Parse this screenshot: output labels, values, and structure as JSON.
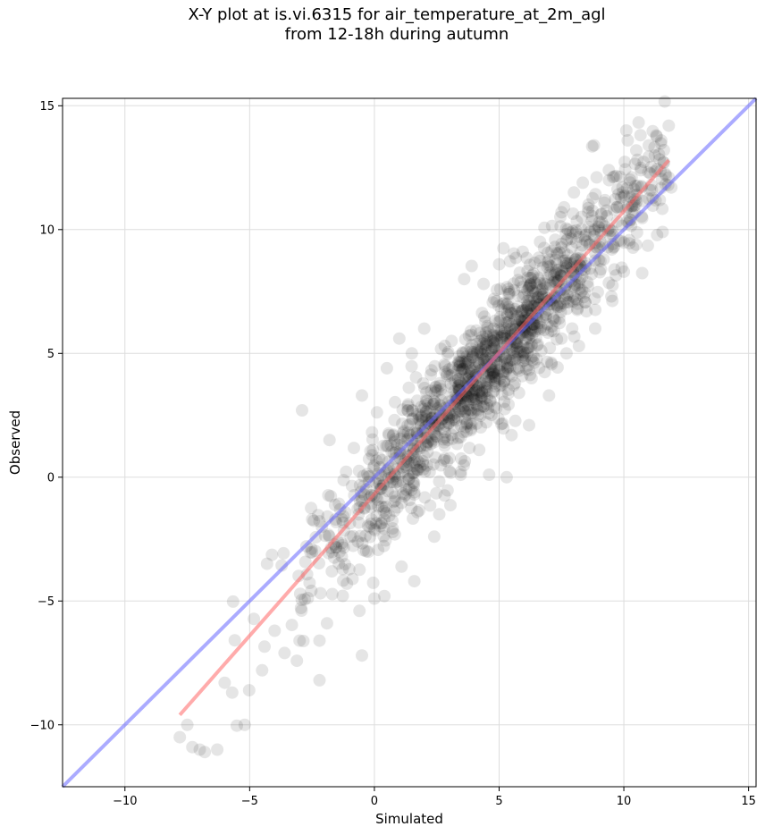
{
  "chart_data": {
    "type": "scatter",
    "title_lines": [
      "X-Y plot at is.vi.6315 for air_temperature_at_2m_agl",
      "from 12-18h during autumn"
    ],
    "xlabel": "Simulated",
    "ylabel": "Observed",
    "xlim": [
      -12.5,
      15.3
    ],
    "ylim": [
      -12.5,
      15.3
    ],
    "xticks": [
      -10,
      -5,
      0,
      5,
      10,
      15
    ],
    "yticks": [
      -10,
      -5,
      0,
      5,
      10,
      15
    ],
    "tick_labels": [
      "−10",
      "−5",
      "0",
      "5",
      "10",
      "15"
    ],
    "grid": true,
    "point_color": "#000000",
    "point_alpha": 0.1,
    "point_count_approx": 1400,
    "series_points_sample": [
      [
        -7.8,
        -10.5
      ],
      [
        -7.3,
        -10.9
      ],
      [
        -7.0,
        -11.0
      ],
      [
        -6.8,
        -11.1
      ],
      [
        -6.3,
        -11.0
      ],
      [
        -7.5,
        -10.0
      ],
      [
        -6.0,
        -8.3
      ],
      [
        -5.7,
        -8.7
      ],
      [
        -5.2,
        -10.0
      ],
      [
        -4.5,
        -7.8
      ],
      [
        -2.2,
        -8.2
      ],
      [
        -0.5,
        -7.2
      ],
      [
        -3.0,
        -6.6
      ],
      [
        -2.2,
        -6.6
      ],
      [
        -0.6,
        -5.4
      ],
      [
        -4.0,
        -6.2
      ],
      [
        -3.6,
        -7.1
      ],
      [
        -1.9,
        -5.9
      ],
      [
        -2.9,
        2.7
      ],
      [
        -1.8,
        1.5
      ],
      [
        -0.5,
        3.3
      ],
      [
        0.5,
        4.4
      ],
      [
        1.0,
        5.6
      ],
      [
        1.5,
        5.0
      ],
      [
        2.0,
        6.0
      ],
      [
        3.6,
        8.0
      ],
      [
        4.8,
        7.2
      ],
      [
        5.0,
        8.6
      ],
      [
        5.3,
        0.0
      ],
      [
        6.2,
        2.1
      ],
      [
        7.0,
        3.3
      ],
      [
        5.5,
        1.7
      ],
      [
        4.6,
        0.1
      ],
      [
        4.2,
        1.1
      ],
      [
        2.6,
        -1.5
      ],
      [
        2.4,
        -2.4
      ],
      [
        1.6,
        -4.2
      ],
      [
        0.0,
        -4.9
      ],
      [
        0.4,
        -4.8
      ],
      [
        -1.1,
        -4.3
      ],
      [
        7.5,
        10.7
      ],
      [
        8.0,
        11.5
      ],
      [
        8.8,
        13.4
      ],
      [
        9.4,
        12.4
      ],
      [
        10.1,
        14.0
      ],
      [
        10.5,
        13.2
      ],
      [
        11.0,
        13.4
      ],
      [
        11.3,
        13.8
      ],
      [
        11.5,
        13.6
      ],
      [
        11.8,
        12.1
      ],
      [
        11.1,
        11.8
      ],
      [
        11.9,
        11.7
      ],
      [
        10.0,
        8.3
      ],
      [
        9.5,
        7.3
      ],
      [
        8.5,
        6.7
      ],
      [
        7.5,
        5.6
      ],
      [
        7.7,
        5.0
      ],
      [
        8.2,
        5.3
      ],
      [
        6.3,
        4.0
      ],
      [
        5.8,
        4.3
      ]
    ],
    "lines": [
      {
        "role": "identity",
        "color": "#6666ff",
        "alpha": 0.55,
        "x": [
          -12.5,
          15.3
        ],
        "y": [
          -12.5,
          15.3
        ]
      },
      {
        "role": "fit",
        "color": "#ff6666",
        "alpha": 0.55,
        "x": [
          -7.8,
          11.8
        ],
        "y": [
          -9.6,
          12.8
        ]
      }
    ]
  }
}
